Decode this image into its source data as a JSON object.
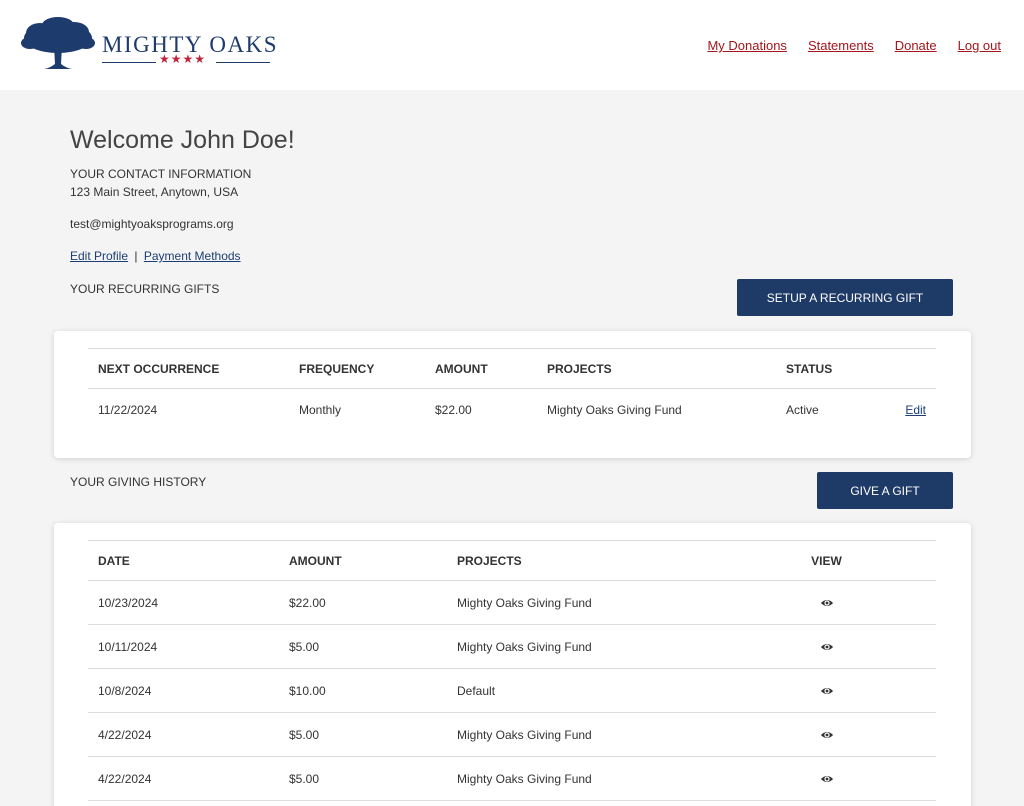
{
  "brand": {
    "name": "MIGHTY OAKS",
    "stars": "★★★★",
    "colors": {
      "navy": "#1e3b6e",
      "red": "#c0243a",
      "link_red": "#a3161b",
      "button": "#1e3a66"
    }
  },
  "nav": [
    "My Donations",
    "Statements",
    "Donate",
    "Log out"
  ],
  "welcome": "Welcome John Doe!",
  "contact": {
    "heading": "YOUR CONTACT INFORMATION",
    "address": "123 Main Street, Anytown, USA",
    "email": "test@mightyoaksprograms.org",
    "edit_profile": "Edit Profile",
    "separator": "|",
    "payment_methods": "Payment Methods"
  },
  "recurring": {
    "heading": "YOUR RECURRING GIFTS",
    "button": "SETUP A RECURRING GIFT",
    "columns": [
      "NEXT OCCURRENCE",
      "FREQUENCY",
      "AMOUNT",
      "PROJECTS",
      "STATUS",
      ""
    ],
    "rows": [
      {
        "next": "11/22/2024",
        "frequency": "Monthly",
        "amount": "$22.00",
        "project": "Mighty Oaks Giving Fund",
        "status": "Active",
        "action": "Edit"
      }
    ]
  },
  "history": {
    "heading": "YOUR GIVING HISTORY",
    "button": "GIVE A GIFT",
    "columns": [
      "DATE",
      "AMOUNT",
      "PROJECTS",
      "VIEW"
    ],
    "rows": [
      {
        "date": "10/23/2024",
        "amount": "$22.00",
        "project": "Mighty Oaks Giving Fund",
        "view_icon": "eye-icon"
      },
      {
        "date": "10/11/2024",
        "amount": "$5.00",
        "project": "Mighty Oaks Giving Fund",
        "view_icon": "eye-icon"
      },
      {
        "date": "10/8/2024",
        "amount": "$10.00",
        "project": "Default",
        "view_icon": "eye-icon"
      },
      {
        "date": "4/22/2024",
        "amount": "$5.00",
        "project": "Mighty Oaks Giving Fund",
        "view_icon": "eye-icon"
      },
      {
        "date": "4/22/2024",
        "amount": "$5.00",
        "project": "Mighty Oaks Giving Fund",
        "view_icon": "eye-icon"
      }
    ]
  }
}
